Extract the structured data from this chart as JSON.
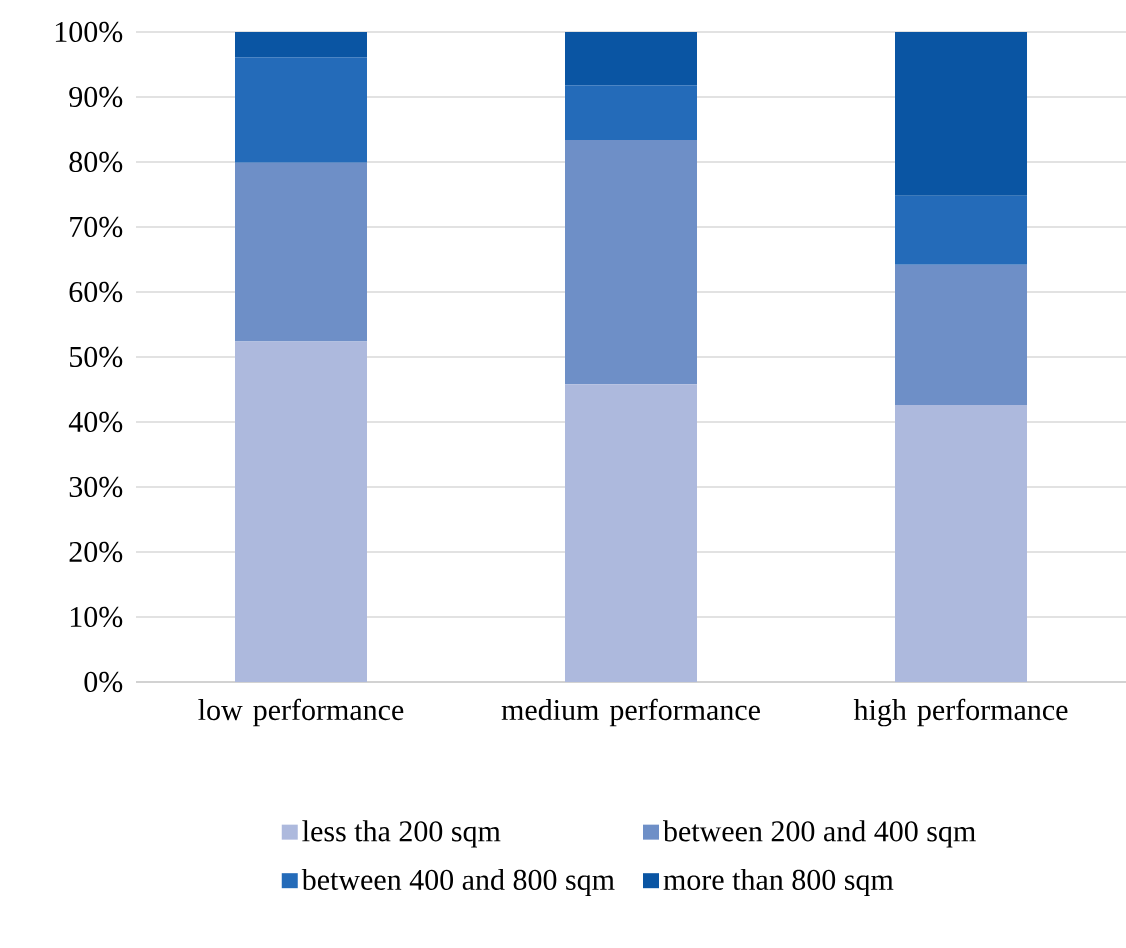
{
  "chart_data": {
    "type": "bar",
    "stacked": true,
    "categories": [
      "low performance",
      "medium performance",
      "high performance"
    ],
    "series": [
      {
        "name": "less tha 200 sqm",
        "color": "#adb9dd",
        "values": [
          52.4,
          45.8,
          42.6
        ]
      },
      {
        "name": "between 200 and 400 sqm",
        "color": "#6e8fc7",
        "values": [
          27.5,
          37.6,
          21.6
        ]
      },
      {
        "name": "between 400 and 800 sqm",
        "color": "#246bb9",
        "values": [
          16.2,
          8.4,
          10.6
        ]
      },
      {
        "name": "more than 800 sqm",
        "color": "#0a55a3",
        "values": [
          3.9,
          8.2,
          25.2
        ]
      }
    ],
    "ylim": [
      0,
      100
    ],
    "yticks": [
      {
        "value": 0,
        "label": "0%"
      },
      {
        "value": 10,
        "label": "10%"
      },
      {
        "value": 20,
        "label": "20%"
      },
      {
        "value": 30,
        "label": "30%"
      },
      {
        "value": 40,
        "label": "40%"
      },
      {
        "value": 50,
        "label": "50%"
      },
      {
        "value": 60,
        "label": "60%"
      },
      {
        "value": 70,
        "label": "70%"
      },
      {
        "value": 80,
        "label": "80%"
      },
      {
        "value": 90,
        "label": "90%"
      },
      {
        "value": 100,
        "label": "100%"
      }
    ],
    "grid": "y",
    "legend": "bottom"
  }
}
